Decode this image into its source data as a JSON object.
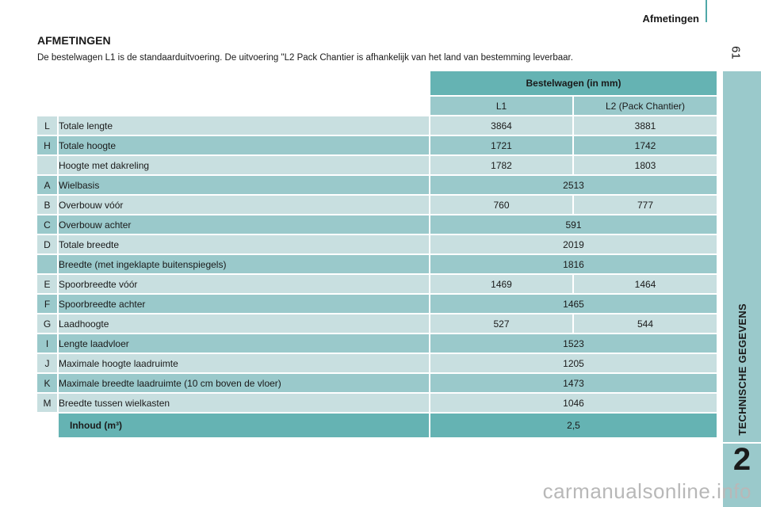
{
  "header": {
    "title": "Afmetingen",
    "page_number": "61"
  },
  "side": {
    "label": "TECHNISCHE GEGEVENS",
    "chapter": "2"
  },
  "section": {
    "title": "AFMETINGEN",
    "intro": "De bestelwagen L1 is de standaarduitvoering. De uitvoering \"L2 Pack Chantier is afhankelijk van het land van bestemming leverbaar."
  },
  "table": {
    "group_header": "Bestelwagen (in mm)",
    "col_l1": "L1",
    "col_l2": "L2 (Pack Chantier)",
    "rows": [
      {
        "letter": "L",
        "label": "Totale lengte",
        "l1": "3864",
        "l2": "3881"
      },
      {
        "letter": "H",
        "label": "Totale hoogte",
        "l1": "1721",
        "l2": "1742"
      },
      {
        "letter": "",
        "label": "Hoogte met dakreling",
        "l1": "1782",
        "l2": "1803"
      },
      {
        "letter": "A",
        "label": "Wielbasis",
        "both": "2513"
      },
      {
        "letter": "B",
        "label": "Overbouw vóór",
        "l1": "760",
        "l2": "777"
      },
      {
        "letter": "C",
        "label": "Overbouw achter",
        "both": "591"
      },
      {
        "letter": "D",
        "label": "Totale breedte",
        "both": "2019"
      },
      {
        "letter": "",
        "label": "Breedte (met ingeklapte buitenspiegels)",
        "both": "1816"
      },
      {
        "letter": "E",
        "label": "Spoorbreedte vóór",
        "l1": "1469",
        "l2": "1464"
      },
      {
        "letter": "F",
        "label": "Spoorbreedte achter",
        "both": "1465"
      },
      {
        "letter": "G",
        "label": "Laadhoogte",
        "l1": "527",
        "l2": "544"
      },
      {
        "letter": "I",
        "label": "Lengte laadvloer",
        "both": "1523"
      },
      {
        "letter": "J",
        "label": "Maximale hoogte laadruimte",
        "both": "1205"
      },
      {
        "letter": "K",
        "label": "Maximale breedte laadruimte (10 cm boven de vloer)",
        "both": "1473"
      },
      {
        "letter": "M",
        "label": "Breedte tussen wielkasten",
        "both": "1046"
      }
    ],
    "volume_label": "Inhoud (m³)",
    "volume_value": "2,5"
  },
  "watermark": "carmanualsonline.info",
  "colors": {
    "teal_dark": "#65b3b3",
    "teal_mid": "#9ac9cb",
    "teal_light": "#c8dfe0"
  }
}
